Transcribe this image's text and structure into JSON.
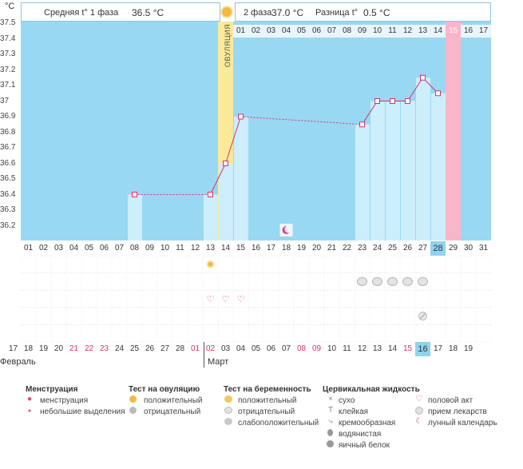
{
  "unit": "°C",
  "y_labels": [
    "37.5",
    "37.4",
    "37.3",
    "37.2",
    "37.1",
    "37",
    "36.9",
    "36.8",
    "36.7",
    "36.6",
    "36.5",
    "36.4",
    "36.3",
    "36.2"
  ],
  "header": {
    "phase1_label": "Средняя t° 1 фаза",
    "phase1_value": "36.5 °C",
    "phase2_label": "2 фаза",
    "phase2_value": "37.0 °C",
    "diff_label": "Разница t°",
    "diff_value": "0.5 °C"
  },
  "ovulation_label": "ОВУЛЯЦИЯ",
  "cycle_days": [
    "01",
    "02",
    "03",
    "04",
    "05",
    "06",
    "07",
    "08",
    "09",
    "10",
    "11",
    "12",
    "13",
    "14",
    "15",
    "16",
    "17"
  ],
  "highlight_cycle_day": "15",
  "day_numbers": [
    "01",
    "02",
    "03",
    "04",
    "05",
    "06",
    "07",
    "08",
    "09",
    "10",
    "11",
    "12",
    "13",
    "14",
    "15",
    "16",
    "17",
    "18",
    "19",
    "20",
    "21",
    "22",
    "23",
    "24",
    "25",
    "26",
    "27",
    "28",
    "29",
    "30",
    "31"
  ],
  "today_day_index": 27,
  "dates": [
    {
      "d": "17",
      "red": false
    },
    {
      "d": "18",
      "red": false
    },
    {
      "d": "19",
      "red": false
    },
    {
      "d": "20",
      "red": false
    },
    {
      "d": "21",
      "red": true
    },
    {
      "d": "22",
      "red": true
    },
    {
      "d": "23",
      "red": true
    },
    {
      "d": "24",
      "red": false
    },
    {
      "d": "25",
      "red": false
    },
    {
      "d": "26",
      "red": false
    },
    {
      "d": "27",
      "red": false
    },
    {
      "d": "28",
      "red": false
    },
    {
      "d": "01",
      "red": true
    },
    {
      "d": "02",
      "red": true
    },
    {
      "d": "03",
      "red": false
    },
    {
      "d": "04",
      "red": false
    },
    {
      "d": "05",
      "red": false
    },
    {
      "d": "06",
      "red": false
    },
    {
      "d": "07",
      "red": false
    },
    {
      "d": "08",
      "red": true
    },
    {
      "d": "09",
      "red": true
    },
    {
      "d": "10",
      "red": false
    },
    {
      "d": "11",
      "red": false
    },
    {
      "d": "12",
      "red": false
    },
    {
      "d": "13",
      "red": false
    },
    {
      "d": "14",
      "red": false
    },
    {
      "d": "15",
      "red": true
    },
    {
      "d": "16",
      "red": false
    },
    {
      "d": "17",
      "red": false
    },
    {
      "d": "18",
      "red": false
    },
    {
      "d": "19",
      "red": false
    }
  ],
  "today_date_index": 27,
  "months": {
    "first": "Февраль",
    "second": "Март"
  },
  "chart_data": {
    "type": "line",
    "x": [
      8,
      13,
      14,
      15,
      23,
      24,
      25,
      26,
      27,
      28
    ],
    "y": [
      36.4,
      36.4,
      36.6,
      36.9,
      36.85,
      37.0,
      37.0,
      37.0,
      37.15,
      37.05
    ],
    "ylim": [
      36.2,
      37.5
    ],
    "ovulation_day": 14,
    "period_day": 29,
    "moon_day": 18
  },
  "markers": {
    "ovulation_test_day": 13,
    "pregnancy_test_days": [
      23,
      24,
      25,
      26,
      27
    ],
    "intercourse_days": [
      13,
      14,
      15
    ],
    "medication_days": [
      27
    ]
  },
  "legend": {
    "menstruation": {
      "title": "Менструация",
      "items": [
        "менструация",
        "небольшие выделения"
      ]
    },
    "ovulation_test": {
      "title": "Тест на овуляцию",
      "items": [
        "положительный",
        "отрицательный"
      ]
    },
    "pregnancy_test": {
      "title": "Тест на беременность",
      "items": [
        "положительный",
        "отрицательный",
        "слабоположительный"
      ]
    },
    "cervical": {
      "title": "Цервикальная жидкость",
      "items": [
        "сухо",
        "клейкая",
        "кремообразная",
        "водянистая",
        "яичный белок"
      ]
    },
    "other": {
      "items": [
        "половой акт",
        "прием лекарств",
        "лунный календарь"
      ]
    }
  },
  "colors": {
    "chart_bg": "#99d8f2",
    "bar": "#cdeefc",
    "line": "#d6336c",
    "ovulation": "#fbe99a",
    "period": "#f9b6c9",
    "today": "#8fd3ef"
  }
}
